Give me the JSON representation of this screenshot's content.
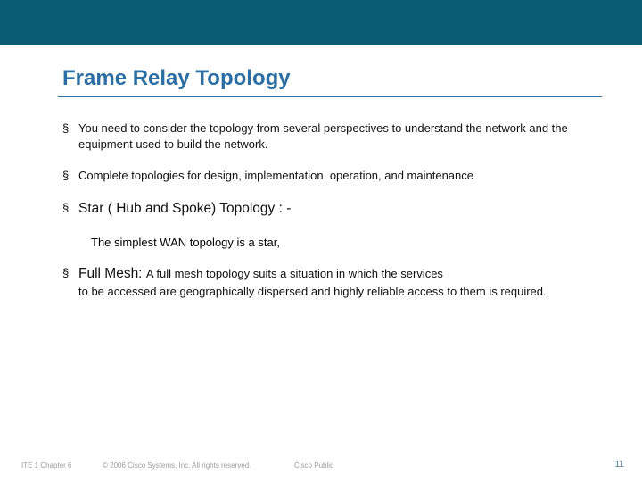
{
  "colors": {
    "topbar": "#0a5c73",
    "title": "#2b6ea3",
    "rule": "#2b6ea3",
    "body": "#111111",
    "footer_grey": "#9c9c9c",
    "footer_page": "#4b7896",
    "background": "#ffffff"
  },
  "title": "Frame Relay Topology",
  "bullet1": "You need to consider the topology from several perspectives to understand the network and the equipment used to build the network.",
  "bullet2": "Complete topologies for design, implementation, operation, and maintenance",
  "bullet3_heading": "Star ( Hub and Spoke) Topology : -",
  "bullet3_sub": "The simplest WAN topology is a star,",
  "bullet4_lead": "Full Mesh: ",
  "bullet4_body": "A full mesh topology suits a situation in which the services",
  "bullet4_cont": "to be accessed are geographically dispersed and highly reliable access to them is required.",
  "footer": {
    "left": "ITE 1 Chapter 6",
    "copyright": "© 2006 Cisco Systems, Inc. All rights reserved.",
    "public": "Cisco Public",
    "page": "11"
  }
}
